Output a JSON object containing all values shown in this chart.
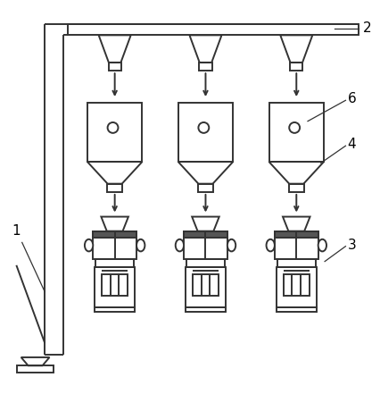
{
  "bg_color": "#ffffff",
  "line_color": "#333333",
  "line_width": 1.4,
  "cols": [
    0.3,
    0.54,
    0.78
  ],
  "label_fontsize": 11
}
